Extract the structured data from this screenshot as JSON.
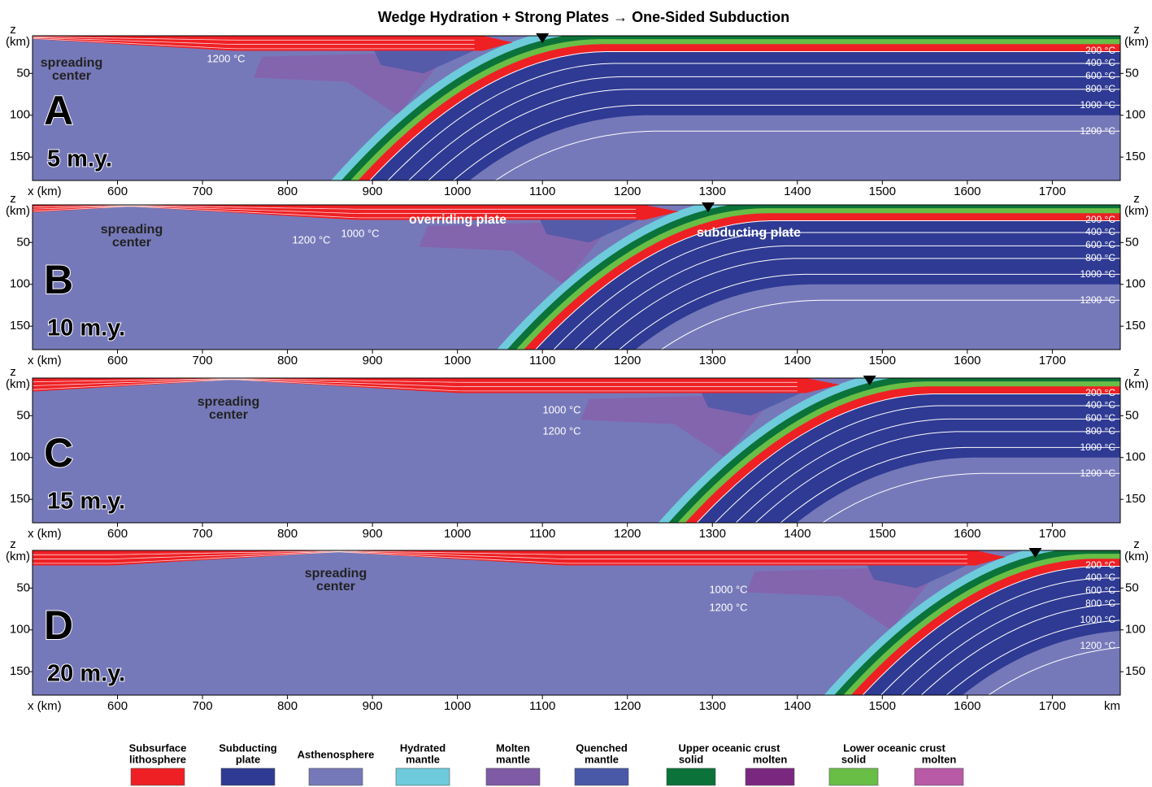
{
  "title": "Wedge Hydration + Strong Plates → One-Sided Subduction",
  "chart_data": [
    {
      "type": "cross-section",
      "panel": "A",
      "age": "5 m.y.",
      "x_label": "x (km)",
      "z_label": "z",
      "z_unit": "(km)",
      "xlim": [
        500,
        1780
      ],
      "ylim": [
        5,
        178
      ],
      "xticks": [
        600,
        700,
        800,
        900,
        1000,
        1100,
        1200,
        1300,
        1400,
        1500,
        1600,
        1700
      ],
      "yticks": [
        50,
        100,
        150
      ],
      "isotherms": [
        "200 °C",
        "400 °C",
        "600 °C",
        "800 °C",
        "1000 °C",
        "1200 °C"
      ],
      "annotations": [
        [
          "spreading",
          "center"
        ],
        [
          "1200 °C"
        ]
      ]
    },
    {
      "type": "cross-section",
      "panel": "B",
      "age": "10 m.y.",
      "x_label": "x (km)",
      "z_label": "z",
      "z_unit": "(km)",
      "xlim": [
        500,
        1780
      ],
      "ylim": [
        5,
        178
      ],
      "xticks": [
        600,
        700,
        800,
        900,
        1000,
        1100,
        1200,
        1300,
        1400,
        1500,
        1600,
        1700
      ],
      "yticks": [
        50,
        100,
        150
      ],
      "isotherms": [
        "200 °C",
        "400 °C",
        "600 °C",
        "800 °C",
        "1000 °C",
        "1200 °C"
      ],
      "annotations": [
        [
          "spreading",
          "center"
        ],
        [
          "overriding plate"
        ],
        [
          "1200 °C"
        ],
        [
          "1000 °C"
        ],
        [
          "subducting plate"
        ]
      ]
    },
    {
      "type": "cross-section",
      "panel": "C",
      "age": "15 m.y.",
      "x_label": "x (km)",
      "z_label": "z",
      "z_unit": "(km)",
      "xlim": [
        500,
        1780
      ],
      "ylim": [
        5,
        178
      ],
      "xticks": [
        600,
        700,
        800,
        900,
        1000,
        1100,
        1200,
        1300,
        1400,
        1500,
        1600,
        1700
      ],
      "yticks": [
        50,
        100,
        150
      ],
      "isotherms": [
        "200 °C",
        "400 °C",
        "600 °C",
        "800 °C",
        "1000 °C",
        "1200 °C"
      ],
      "annotations": [
        [
          "spreading",
          "center"
        ],
        [
          "1000 °C"
        ],
        [
          "1200 °C"
        ]
      ]
    },
    {
      "type": "cross-section",
      "panel": "D",
      "age": "20 m.y.",
      "x_label": "x (km)",
      "x_unit": "km",
      "z_label": "z",
      "z_unit": "(km)",
      "xlim": [
        500,
        1780
      ],
      "ylim": [
        5,
        178
      ],
      "xticks": [
        600,
        700,
        800,
        900,
        1000,
        1100,
        1200,
        1300,
        1400,
        1500,
        1600,
        1700
      ],
      "yticks": [
        50,
        100,
        150
      ],
      "isotherms": [
        "200 °C",
        "400 °C",
        "600 °C",
        "800 °C",
        "1000 °C",
        "1200 °C"
      ],
      "annotations": [
        [
          "spreading",
          "center"
        ],
        [
          "1000 °C"
        ],
        [
          "1200 °C"
        ]
      ]
    }
  ],
  "legend": {
    "items": [
      {
        "label": [
          "Subsurface",
          "lithosphere"
        ],
        "color": "#ee2024"
      },
      {
        "label": [
          "Subducting",
          "plate"
        ],
        "color": "#2e3a93"
      },
      {
        "label": [
          "Asthenosphere"
        ],
        "color": "#7679b9"
      },
      {
        "label": [
          "Hydrated",
          "mantle"
        ],
        "color": "#6ecbdc"
      },
      {
        "label": [
          "Molten",
          "mantle"
        ],
        "color": "#7f5aa5"
      },
      {
        "label": [
          "Quenched",
          "mantle"
        ],
        "color": "#4a58a8"
      }
    ],
    "groups": [
      {
        "title": "Upper oceanic crust",
        "items": [
          {
            "label": "solid",
            "color": "#0b7239"
          },
          {
            "label": "molten",
            "color": "#7a287f"
          }
        ]
      },
      {
        "title": "Lower oceanic crust",
        "items": [
          {
            "label": "solid",
            "color": "#69be46"
          },
          {
            "label": "molten",
            "color": "#b85aa6"
          }
        ]
      }
    ]
  }
}
